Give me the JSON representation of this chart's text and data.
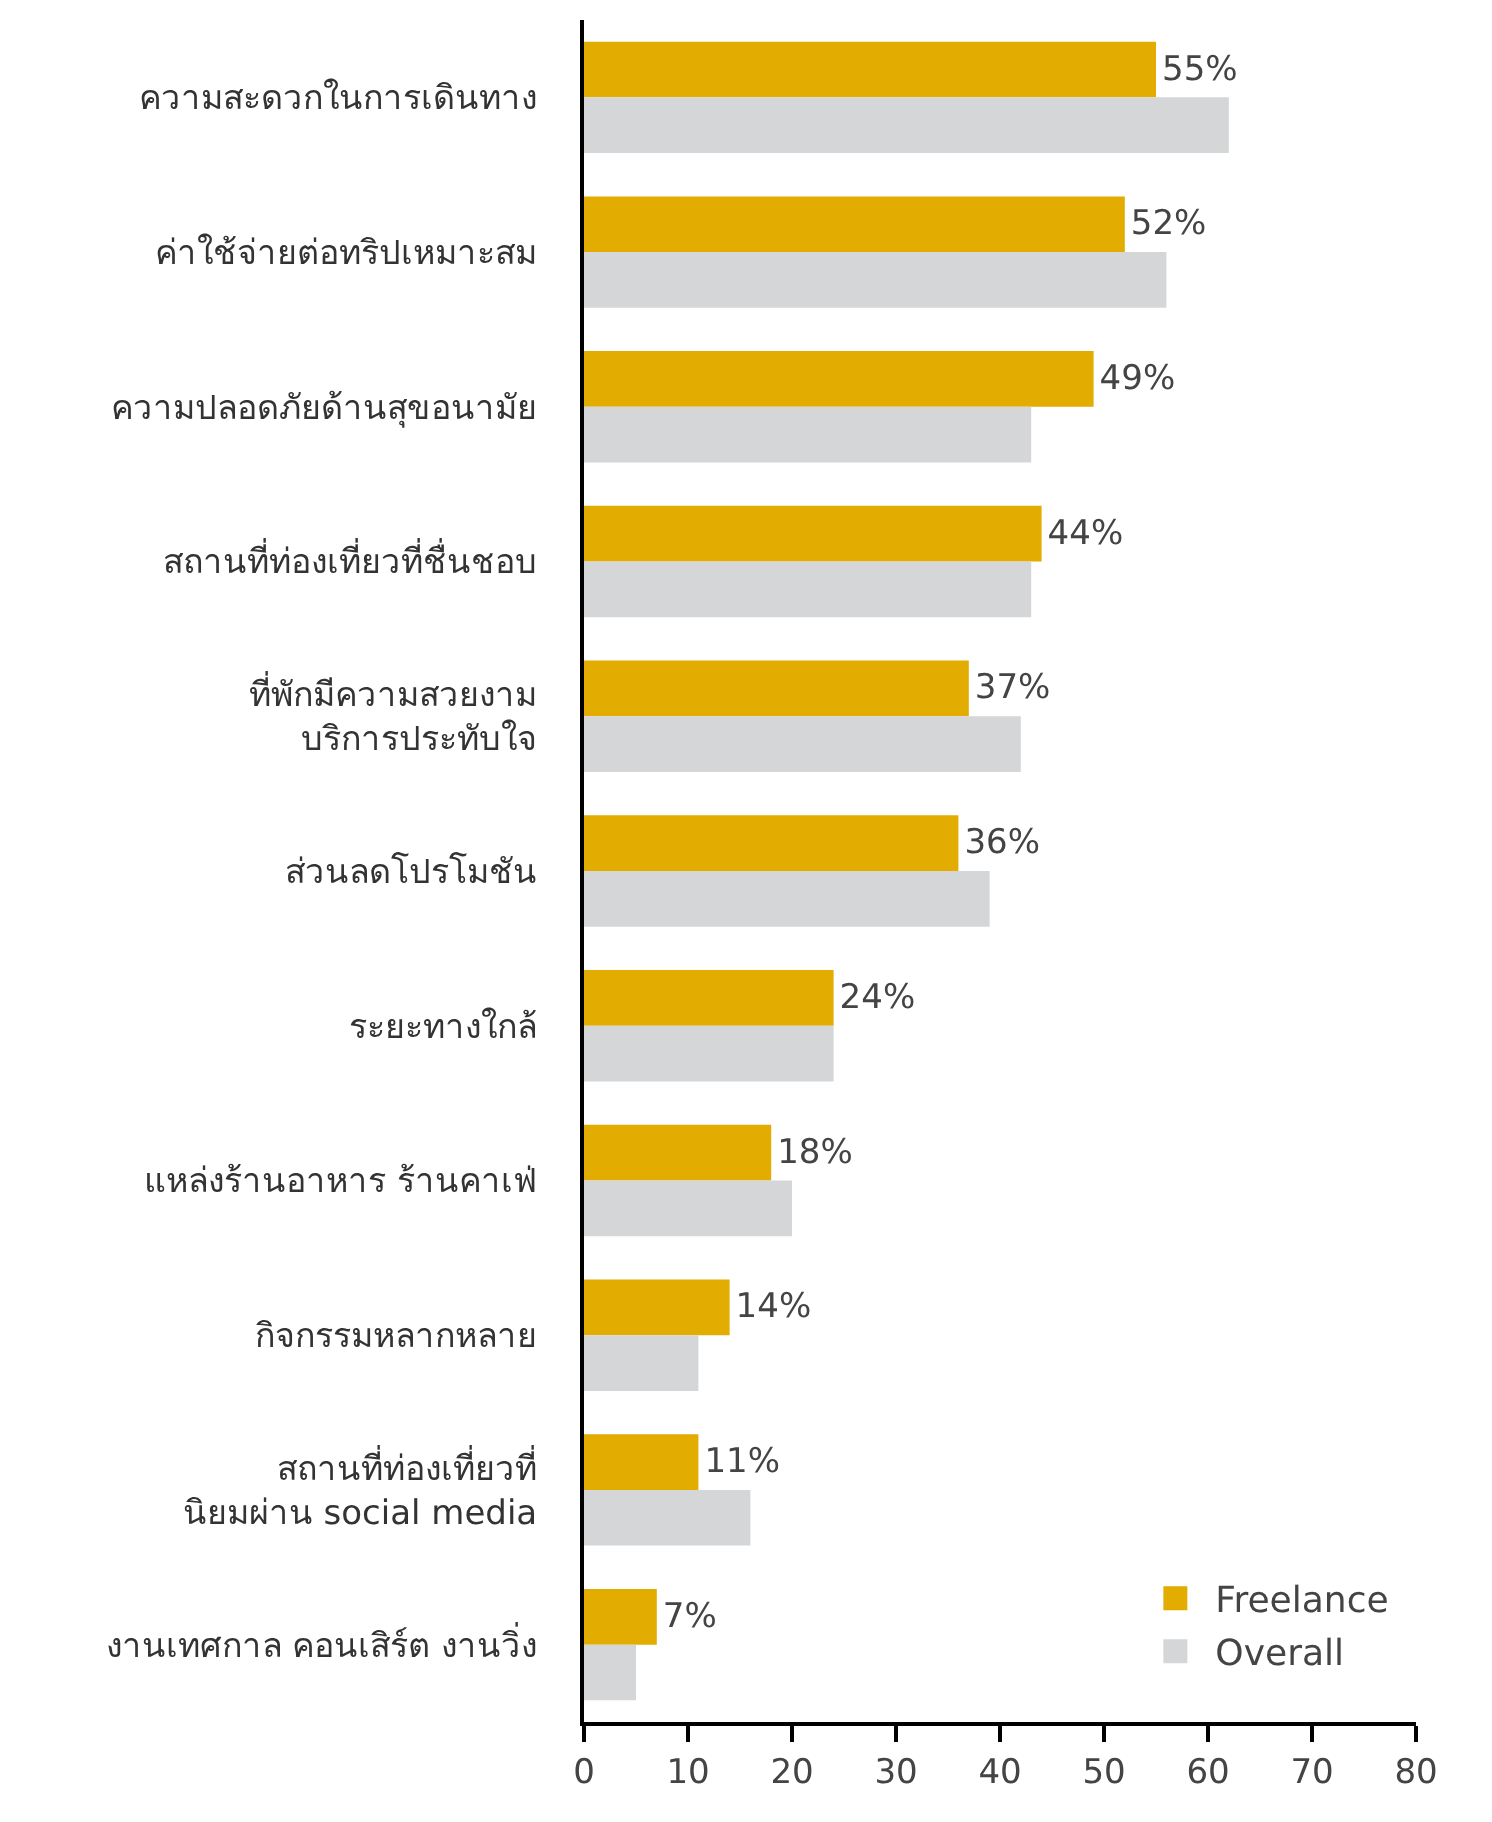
{
  "chart_data": {
    "type": "bar",
    "orientation": "horizontal",
    "categories": [
      "ความสะดวกในการเดินทาง",
      "ค่าใช้จ่ายต่อทริปเหมาะสม",
      "ความปลอดภัยด้านสุขอนามัย",
      "สถานที่ท่องเที่ยวที่ชื่นชอบ",
      "ที่พักมีความสวยงาม\nบริการประทับใจ",
      "ส่วนลดโปรโมชัน",
      "ระยะทางใกล้",
      "แหล่งร้านอาหาร ร้านคาเฟ่",
      "กิจกรรมหลากหลาย",
      "สถานที่ท่องเที่ยวที่\nนิยมผ่าน social media",
      "งานเทศกาล คอนเสิร์ต งานวิ่ง"
    ],
    "series": [
      {
        "name": "Freelance",
        "color": "#e2ac00",
        "values": [
          55,
          52,
          49,
          44,
          37,
          36,
          24,
          18,
          14,
          11,
          7
        ],
        "value_labels": [
          "55%",
          "52%",
          "49%",
          "44%",
          "37%",
          "36%",
          "24%",
          "18%",
          "14%",
          "11%",
          "7%"
        ]
      },
      {
        "name": "Overall",
        "color": "#d5d6d8",
        "values": [
          62,
          56,
          43,
          43,
          42,
          39,
          24,
          20,
          11,
          16,
          5
        ]
      }
    ],
    "xlim": [
      0,
      80
    ],
    "xticks": [
      0,
      10,
      20,
      30,
      40,
      50,
      60,
      70,
      80
    ],
    "grid": false,
    "legend": "bottom right"
  }
}
